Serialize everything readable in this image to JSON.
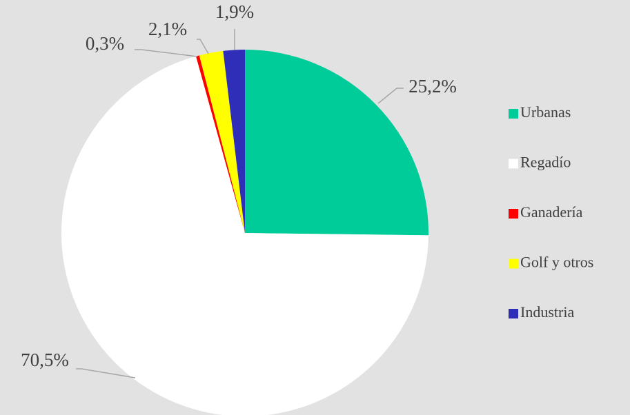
{
  "chart_data": {
    "type": "pie",
    "categories": [
      "Urbanas",
      "Regadío",
      "Ganadería",
      "Golf y otros",
      "Industria"
    ],
    "values": [
      25.2,
      70.5,
      0.3,
      2.1,
      1.9
    ],
    "value_labels": [
      "25,2%",
      "70,5%",
      "0,3%",
      "2,1%",
      "1,9%"
    ],
    "colors": [
      "#00cc99",
      "#ffffff",
      "#ff0000",
      "#ffff00",
      "#2e2eb8"
    ],
    "legend": "right"
  }
}
